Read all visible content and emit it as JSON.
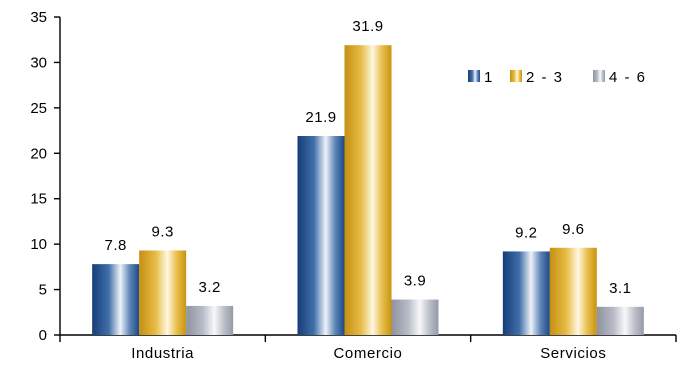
{
  "chart_data": {
    "type": "bar",
    "title": "",
    "xlabel": "",
    "ylabel": "",
    "categories": [
      "Industria",
      "Comercio",
      "Servicios"
    ],
    "series": [
      {
        "name": "1",
        "values": [
          7.8,
          21.9,
          9.2
        ],
        "color": "#1f4e8c"
      },
      {
        "name": "2 - 3",
        "values": [
          9.3,
          31.9,
          9.6
        ],
        "color": "#d9a520"
      },
      {
        "name": "4   - 6",
        "values": [
          3.2,
          3.9,
          3.1
        ],
        "color": "#a8acb8"
      }
    ],
    "ylim": [
      0,
      35
    ],
    "yticks": [
      "0",
      "5",
      "10",
      "15",
      "20",
      "25",
      "30",
      "35"
    ],
    "data_labels": [
      [
        "7.8",
        "21.9",
        "9.2"
      ],
      [
        "9.3",
        "31.9",
        "9.6"
      ],
      [
        "3.2",
        "3.9",
        "3.1"
      ]
    ],
    "grid": false,
    "legend": "top-right"
  }
}
